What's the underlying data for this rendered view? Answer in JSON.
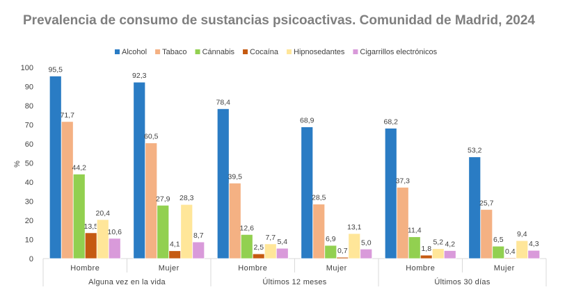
{
  "chart_data": {
    "type": "bar",
    "title": "Prevalencia de consumo de sustancias psicoactivas. Comunidad de Madrid, 2024",
    "ylabel": "%",
    "xlabel": "",
    "ylim": [
      0,
      100
    ],
    "yticks": [
      0,
      10,
      20,
      30,
      40,
      50,
      60,
      70,
      80,
      90,
      100
    ],
    "grid": false,
    "legend_position": "top",
    "groups": [
      "Alguna vez en la vida",
      "Últimos 12 meses",
      "Últimos 30 días"
    ],
    "categories": [
      "Hombre",
      "Mujer",
      "Hombre",
      "Mujer",
      "Hombre",
      "Mujer"
    ],
    "series": [
      {
        "name": "Alcohol",
        "color": "#2a7cc4",
        "values": [
          95.5,
          92.3,
          78.4,
          68.9,
          68.2,
          53.2
        ],
        "labels": [
          "95,5",
          "92,3",
          "78,4",
          "68,9",
          "68,2",
          "53,2"
        ]
      },
      {
        "name": "Tabaco",
        "color": "#f4b183",
        "values": [
          71.7,
          60.5,
          39.5,
          28.5,
          37.3,
          25.7
        ],
        "labels": [
          "71,7",
          "60,5",
          "39,5",
          "28,5",
          "37,3",
          "25,7"
        ]
      },
      {
        "name": "Cánnabis",
        "color": "#92d050",
        "values": [
          44.2,
          27.9,
          12.6,
          6.9,
          11.4,
          6.5
        ],
        "labels": [
          "44,2",
          "27,9",
          "12,6",
          "6,9",
          "11,4",
          "6,5"
        ]
      },
      {
        "name": "Cocaína",
        "color": "#c55a11",
        "values": [
          13.5,
          4.1,
          2.5,
          0.7,
          1.8,
          0.4
        ],
        "labels": [
          "13,5",
          "4,1",
          "2,5",
          "0,7",
          "1,8",
          "0,4"
        ]
      },
      {
        "name": "Hipnosedantes",
        "color": "#ffe699",
        "values": [
          20.4,
          28.3,
          7.7,
          13.1,
          5.2,
          9.4
        ],
        "labels": [
          "20,4",
          "28,3",
          "7,7",
          "13,1",
          "5,2",
          "9,4"
        ]
      },
      {
        "name": "Cigarrillos electrónicos",
        "color": "#d99ada",
        "values": [
          10.6,
          8.7,
          5.4,
          5.0,
          4.2,
          4.3
        ],
        "labels": [
          "10,6",
          "8,7",
          "5,4",
          "5,0",
          "4,2",
          "4,3"
        ]
      }
    ]
  }
}
